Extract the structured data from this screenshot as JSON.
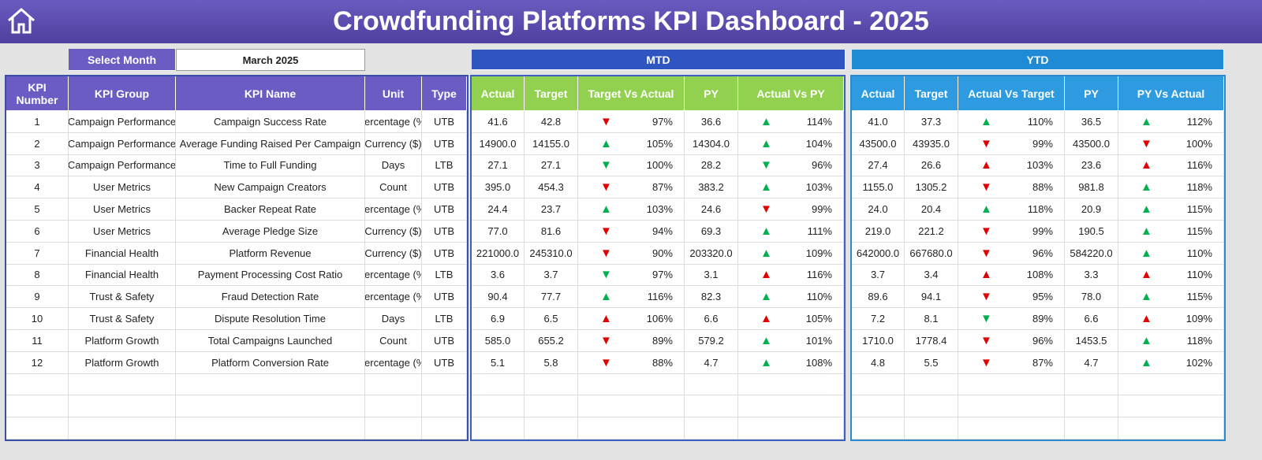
{
  "header": {
    "title": "Crowdfunding Platforms KPI Dashboard - 2025"
  },
  "filter": {
    "label": "Select Month",
    "value": "March 2025"
  },
  "sections": {
    "mtd": "MTD",
    "ytd": "YTD"
  },
  "kpi_table": {
    "columns": [
      "KPI Number",
      "KPI Group",
      "KPI Name",
      "Unit",
      "Type"
    ],
    "rows": [
      [
        "1",
        "Campaign Performance",
        "Campaign Success Rate",
        "Percentage (%)",
        "UTB"
      ],
      [
        "2",
        "Campaign Performance",
        "Average Funding Raised Per Campaign",
        "Currency ($)",
        "UTB"
      ],
      [
        "3",
        "Campaign Performance",
        "Time to Full Funding",
        "Days",
        "LTB"
      ],
      [
        "4",
        "User Metrics",
        "New Campaign Creators",
        "Count",
        "UTB"
      ],
      [
        "5",
        "User Metrics",
        "Backer Repeat Rate",
        "Percentage (%)",
        "UTB"
      ],
      [
        "6",
        "User Metrics",
        "Average Pledge Size",
        "Currency ($)",
        "UTB"
      ],
      [
        "7",
        "Financial Health",
        "Platform Revenue",
        "Currency ($)",
        "UTB"
      ],
      [
        "8",
        "Financial Health",
        "Payment Processing Cost Ratio",
        "Percentage (%)",
        "LTB"
      ],
      [
        "9",
        "Trust & Safety",
        "Fraud Detection Rate",
        "Percentage (%)",
        "UTB"
      ],
      [
        "10",
        "Trust & Safety",
        "Dispute Resolution Time",
        "Days",
        "LTB"
      ],
      [
        "11",
        "Platform Growth",
        "Total Campaigns Launched",
        "Count",
        "UTB"
      ],
      [
        "12",
        "Platform Growth",
        "Platform Conversion Rate",
        "Percentage (%)",
        "UTB"
      ]
    ]
  },
  "mtd_table": {
    "columns": [
      "Actual",
      "Target",
      "Target Vs Actual",
      "PY",
      "Actual Vs PY"
    ],
    "rows": [
      [
        "41.6",
        "42.8",
        "▼",
        "#e00000",
        "97%",
        "36.6",
        "▲",
        "#00b050",
        "114%"
      ],
      [
        "14900.0",
        "14155.0",
        "▲",
        "#00b050",
        "105%",
        "14304.0",
        "▲",
        "#00b050",
        "104%"
      ],
      [
        "27.1",
        "27.1",
        "▼",
        "#00b050",
        "100%",
        "28.2",
        "▼",
        "#00b050",
        "96%"
      ],
      [
        "395.0",
        "454.3",
        "▼",
        "#e00000",
        "87%",
        "383.2",
        "▲",
        "#00b050",
        "103%"
      ],
      [
        "24.4",
        "23.7",
        "▲",
        "#00b050",
        "103%",
        "24.6",
        "▼",
        "#e00000",
        "99%"
      ],
      [
        "77.0",
        "81.6",
        "▼",
        "#e00000",
        "94%",
        "69.3",
        "▲",
        "#00b050",
        "111%"
      ],
      [
        "221000.0",
        "245310.0",
        "▼",
        "#e00000",
        "90%",
        "203320.0",
        "▲",
        "#00b050",
        "109%"
      ],
      [
        "3.6",
        "3.7",
        "▼",
        "#00b050",
        "97%",
        "3.1",
        "▲",
        "#e00000",
        "116%"
      ],
      [
        "90.4",
        "77.7",
        "▲",
        "#00b050",
        "116%",
        "82.3",
        "▲",
        "#00b050",
        "110%"
      ],
      [
        "6.9",
        "6.5",
        "▲",
        "#e00000",
        "106%",
        "6.6",
        "▲",
        "#e00000",
        "105%"
      ],
      [
        "585.0",
        "655.2",
        "▼",
        "#e00000",
        "89%",
        "579.2",
        "▲",
        "#00b050",
        "101%"
      ],
      [
        "5.1",
        "5.8",
        "▼",
        "#e00000",
        "88%",
        "4.7",
        "▲",
        "#00b050",
        "108%"
      ]
    ]
  },
  "ytd_table": {
    "columns": [
      "Actual",
      "Target",
      "Actual Vs Target",
      "PY",
      "PY Vs Actual"
    ],
    "rows": [
      [
        "41.0",
        "37.3",
        "▲",
        "#00b050",
        "110%",
        "36.5",
        "▲",
        "#00b050",
        "112%"
      ],
      [
        "43500.0",
        "43935.0",
        "▼",
        "#e00000",
        "99%",
        "43500.0",
        "▼",
        "#e00000",
        "100%"
      ],
      [
        "27.4",
        "26.6",
        "▲",
        "#e00000",
        "103%",
        "23.6",
        "▲",
        "#e00000",
        "116%"
      ],
      [
        "1155.0",
        "1305.2",
        "▼",
        "#e00000",
        "88%",
        "981.8",
        "▲",
        "#00b050",
        "118%"
      ],
      [
        "24.0",
        "20.4",
        "▲",
        "#00b050",
        "118%",
        "20.9",
        "▲",
        "#00b050",
        "115%"
      ],
      [
        "219.0",
        "221.2",
        "▼",
        "#e00000",
        "99%",
        "190.5",
        "▲",
        "#00b050",
        "115%"
      ],
      [
        "642000.0",
        "667680.0",
        "▼",
        "#e00000",
        "96%",
        "584220.0",
        "▲",
        "#00b050",
        "110%"
      ],
      [
        "3.7",
        "3.4",
        "▲",
        "#e00000",
        "108%",
        "3.3",
        "▲",
        "#e00000",
        "110%"
      ],
      [
        "89.6",
        "94.1",
        "▼",
        "#e00000",
        "95%",
        "78.0",
        "▲",
        "#00b050",
        "115%"
      ],
      [
        "7.2",
        "8.1",
        "▼",
        "#00b050",
        "89%",
        "6.6",
        "▲",
        "#e00000",
        "109%"
      ],
      [
        "1710.0",
        "1778.4",
        "▼",
        "#e00000",
        "96%",
        "1453.5",
        "▲",
        "#00b050",
        "118%"
      ],
      [
        "4.8",
        "5.5",
        "▼",
        "#e00000",
        "87%",
        "4.7",
        "▲",
        "#00b050",
        "102%"
      ]
    ]
  }
}
